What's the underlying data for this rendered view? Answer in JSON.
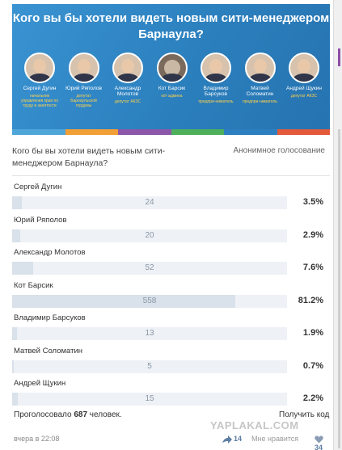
{
  "banner": {
    "title": "Кого вы бы хотели видеть новым сити-менеджером Барнаула?",
    "candidates": [
      {
        "name": "Сергей Дугин",
        "position": "начальник управления края по труду и занятости"
      },
      {
        "name": "Юрий Ряполов",
        "position": "депутат Барнаульской гордумы"
      },
      {
        "name": "Александр Молотов",
        "position": "депутат АКЗС"
      },
      {
        "name": "Кот Барсик",
        "position": "кот админа"
      },
      {
        "name": "Владимир Барсуков",
        "position": "предпри-ниматель"
      },
      {
        "name": "Матвей Соломатин",
        "position": "предпри-ниматель"
      },
      {
        "name": "Андрей Щукин",
        "position": "депутат АКЗС"
      }
    ],
    "stripe_colors": [
      "#4fa6d8",
      "#f29f35",
      "#8d57a9",
      "#4fb05c",
      "#2c7fc1",
      "#e35a3b"
    ]
  },
  "poll": {
    "question": "Кого бы вы хотели видеть новым сити-менеджером Барнаула?",
    "type_label": "Анонимное голосование",
    "options": [
      {
        "name": "Сергей Дугин",
        "votes": "24",
        "percent": "3.5%",
        "share": 0.035
      },
      {
        "name": "Юрий Ряполов",
        "votes": "20",
        "percent": "2.9%",
        "share": 0.029
      },
      {
        "name": "Александр Молотов",
        "votes": "52",
        "percent": "7.6%",
        "share": 0.076
      },
      {
        "name": "Кот Барсик",
        "votes": "558",
        "percent": "81.2%",
        "share": 0.812
      },
      {
        "name": "Владимир Барсуков",
        "votes": "13",
        "percent": "1.9%",
        "share": 0.019
      },
      {
        "name": "Матвей Соломатин",
        "votes": "5",
        "percent": "0.7%",
        "share": 0.007
      },
      {
        "name": "Андрей Щукин",
        "votes": "15",
        "percent": "2.2%",
        "share": 0.022
      }
    ],
    "voted_prefix": "Проголосовало",
    "voted_count": "687",
    "voted_suffix": "человек.",
    "get_code": "Получить код"
  },
  "watermark": "YAPLAKAL.COM",
  "footer": {
    "time": "вчера в 22:08",
    "shares": "14",
    "like_label": "Мне нравится",
    "likes": "34",
    "share_icon": "share-icon",
    "like_icon": "heart-icon"
  }
}
